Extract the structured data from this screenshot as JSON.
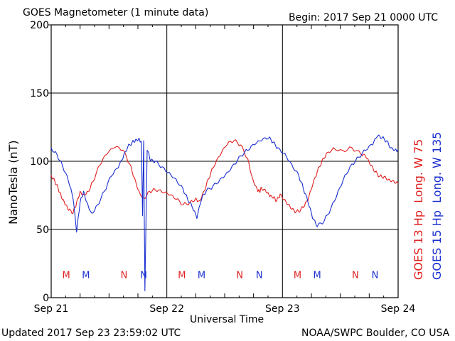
{
  "header": {
    "title": "GOES Magnetometer (1 minute data)",
    "begin": "Begin:  2017 Sep 21 0000 UTC"
  },
  "footer": {
    "updated": "Updated 2017 Sep 23 23:59:02 UTC",
    "credit": "NOAA/SWPC Boulder, CO USA"
  },
  "colors": {
    "goes13": "#e02020",
    "goes15": "#1a2fd0",
    "grid": "#000000"
  },
  "chart_data": {
    "type": "line",
    "xlabel": "Universal Time",
    "ylabel": "NanoTesla (nT)",
    "ylim": [
      0,
      200
    ],
    "yticks": [
      0,
      50,
      100,
      150,
      200
    ],
    "xlim": [
      0,
      3
    ],
    "xticks": [
      {
        "x": 0,
        "label": "Sep 21"
      },
      {
        "x": 1,
        "label": "Sep 22"
      },
      {
        "x": 2,
        "label": "Sep 23"
      },
      {
        "x": 3,
        "label": "Sep 24"
      }
    ],
    "grid": true,
    "legend_position": "right, rotated vertical",
    "series": [
      {
        "name": "GOES 13 Hp",
        "legend": "Long. W 75",
        "color": "#e02020",
        "x": [
          0.0,
          0.03,
          0.06,
          0.09,
          0.12,
          0.15,
          0.19,
          0.22,
          0.25,
          0.28,
          0.32,
          0.36,
          0.42,
          0.48,
          0.55,
          0.62,
          0.68,
          0.72,
          0.76,
          0.8,
          0.85,
          0.9,
          0.96,
          1.02,
          1.08,
          1.14,
          1.2,
          1.25,
          1.28,
          1.32,
          1.36,
          1.4,
          1.46,
          1.52,
          1.58,
          1.64,
          1.7,
          1.74,
          1.78,
          1.8,
          1.82,
          1.86,
          1.89,
          1.92,
          1.95,
          1.98,
          2.02,
          2.06,
          2.1,
          2.14,
          2.18,
          2.22,
          2.26,
          2.3,
          2.34,
          2.38,
          2.44,
          2.52,
          2.6,
          2.68,
          2.72,
          2.76,
          2.8,
          2.84,
          2.88,
          2.92,
          2.96,
          3.0
        ],
        "values": [
          90,
          86,
          80,
          73,
          68,
          64,
          62,
          70,
          78,
          76,
          78,
          85,
          97,
          105,
          110,
          108,
          98,
          88,
          78,
          73,
          78,
          79,
          77,
          75,
          72,
          68,
          70,
          73,
          71,
          78,
          87,
          95,
          104,
          112,
          115,
          112,
          102,
          88,
          80,
          78,
          80,
          77,
          74,
          73,
          71,
          76,
          72,
          68,
          64,
          63,
          66,
          71,
          82,
          92,
          100,
          106,
          110,
          108,
          110,
          105,
          103,
          97,
          92,
          89,
          89,
          87,
          86,
          84
        ]
      },
      {
        "name": "GOES 15 Hp",
        "legend": "Long. W 135",
        "color": "#1a2fd0",
        "x": [
          0.0,
          0.05,
          0.1,
          0.15,
          0.19,
          0.22,
          0.25,
          0.28,
          0.31,
          0.35,
          0.4,
          0.46,
          0.52,
          0.58,
          0.62,
          0.66,
          0.7,
          0.73,
          0.76,
          0.78,
          0.79,
          0.8,
          0.81,
          0.83,
          0.86,
          0.9,
          0.96,
          1.02,
          1.08,
          1.14,
          1.18,
          1.22,
          1.26,
          1.3,
          1.34,
          1.4,
          1.46,
          1.52,
          1.58,
          1.64,
          1.7,
          1.76,
          1.82,
          1.88,
          1.92,
          1.96,
          2.02,
          2.08,
          2.14,
          2.18,
          2.22,
          2.26,
          2.3,
          2.36,
          2.42,
          2.48,
          2.54,
          2.6,
          2.66,
          2.72,
          2.78,
          2.82,
          2.86,
          2.9,
          2.94,
          2.98,
          3.0
        ],
        "values": [
          110,
          105,
          96,
          85,
          72,
          48,
          70,
          78,
          70,
          62,
          68,
          78,
          89,
          95,
          102,
          110,
          114,
          116,
          117,
          114,
          60,
          115,
          5,
          108,
          100,
          100,
          96,
          92,
          87,
          80,
          72,
          66,
          58,
          72,
          78,
          82,
          87,
          92,
          98,
          104,
          108,
          112,
          115,
          117,
          114,
          110,
          106,
          98,
          90,
          80,
          70,
          58,
          52,
          56,
          66,
          78,
          90,
          98,
          103,
          108,
          112,
          118,
          117,
          115,
          110,
          109,
          108
        ]
      }
    ],
    "markers": [
      {
        "x": 0.13,
        "label": "M",
        "series": "GOES 13 Hp"
      },
      {
        "x": 0.3,
        "label": "M",
        "series": "GOES 15 Hp"
      },
      {
        "x": 0.63,
        "label": "N",
        "series": "GOES 13 Hp"
      },
      {
        "x": 0.8,
        "label": "N",
        "series": "GOES 15 Hp"
      },
      {
        "x": 1.13,
        "label": "M",
        "series": "GOES 13 Hp"
      },
      {
        "x": 1.3,
        "label": "M",
        "series": "GOES 15 Hp"
      },
      {
        "x": 1.63,
        "label": "N",
        "series": "GOES 13 Hp"
      },
      {
        "x": 1.8,
        "label": "N",
        "series": "GOES 15 Hp"
      },
      {
        "x": 2.13,
        "label": "M",
        "series": "GOES 13 Hp"
      },
      {
        "x": 2.3,
        "label": "M",
        "series": "GOES 15 Hp"
      },
      {
        "x": 2.63,
        "label": "N",
        "series": "GOES 13 Hp"
      },
      {
        "x": 2.8,
        "label": "N",
        "series": "GOES 15 Hp"
      }
    ],
    "marker_level": 17
  }
}
